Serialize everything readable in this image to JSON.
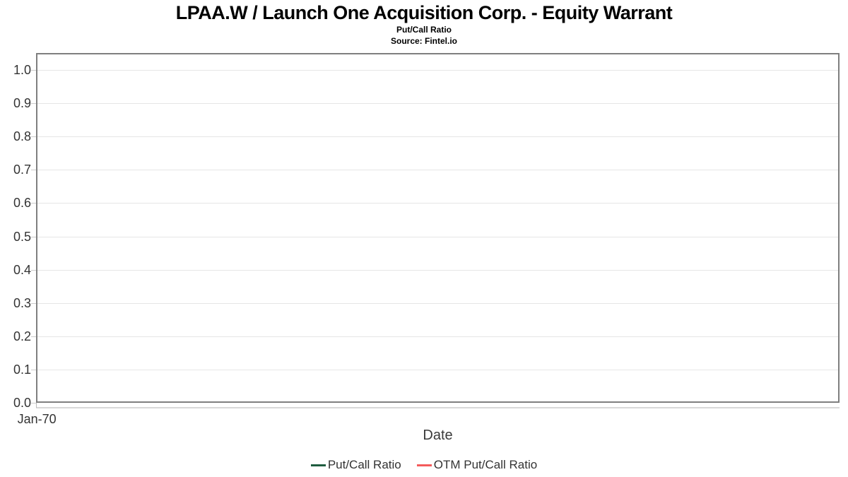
{
  "header": {
    "title": "LPAA.W / Launch One Acquisition Corp. - Equity Warrant",
    "subtitle": "Put/Call Ratio",
    "source": "Source: Fintel.io"
  },
  "colors": {
    "put_call_line": "#1f5c3f",
    "otm_put_call_line": "#f45b5b",
    "gridline": "#e6e6e6",
    "plot_border": "#7f7f7f",
    "tick": "#cccccc",
    "text": "#333333"
  },
  "chart_data": {
    "type": "line",
    "title": "LPAA.W / Launch One Acquisition Corp. - Equity Warrant",
    "subtitle": "Put/Call Ratio",
    "source": "Source: Fintel.io",
    "xlabel": "Date",
    "ylabel": "",
    "ylim": [
      0.0,
      1.05
    ],
    "yticks": [
      0.0,
      0.1,
      0.2,
      0.3,
      0.4,
      0.5,
      0.6,
      0.7,
      0.8,
      0.9,
      1.0
    ],
    "xticks": [
      "Jan-70"
    ],
    "grid": true,
    "legend_position": "bottom",
    "series": [
      {
        "name": "Put/Call Ratio",
        "color": "#1f5c3f",
        "x": [],
        "values": []
      },
      {
        "name": "OTM Put/Call Ratio",
        "color": "#f45b5b",
        "x": [],
        "values": []
      }
    ]
  }
}
